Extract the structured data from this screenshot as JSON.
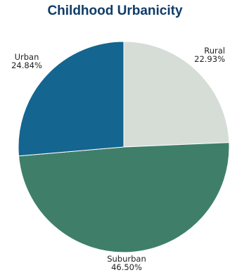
{
  "chart_data": {
    "type": "pie",
    "title": "Childhood Urbanicity",
    "slices": [
      {
        "label": "Rural",
        "value": 22.93,
        "value_label": "22.93%",
        "color": "#d6dcd6",
        "label_anchor": "end"
      },
      {
        "label": "Suburban",
        "value": 46.5,
        "value_label": "46.50%",
        "color": "#3f7f6a",
        "label_anchor": "middle"
      },
      {
        "label": "Urban",
        "value": 24.84,
        "value_label": "24.84%",
        "color": "#14658f",
        "label_anchor": "middle"
      }
    ],
    "start_angle": "12 o'clock",
    "direction": "clockwise",
    "legend": "none"
  }
}
